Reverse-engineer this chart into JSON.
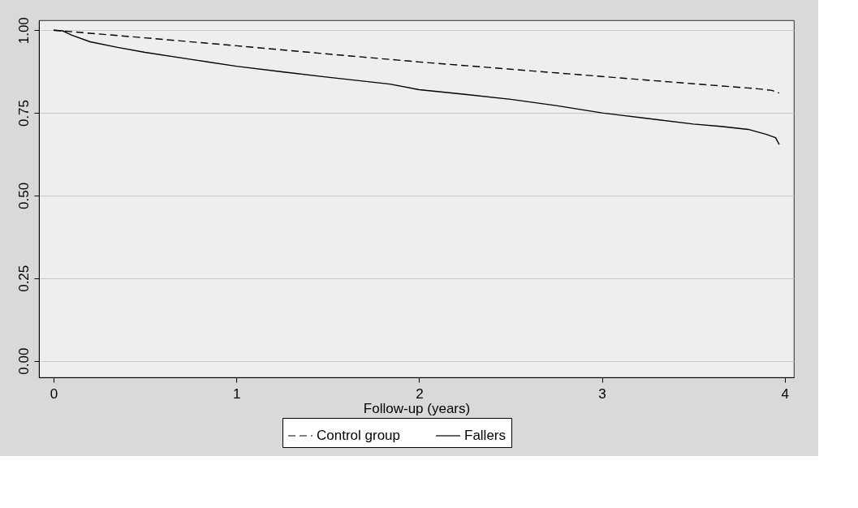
{
  "chart_data": {
    "type": "line",
    "xlabel": "Follow-up (years)",
    "xlim": [
      -0.08,
      4.05
    ],
    "ylim": [
      -0.05,
      1.03
    ],
    "xticks": [
      0,
      1,
      2,
      3,
      4
    ],
    "yticks": [
      {
        "value": 0,
        "label": "0.00"
      },
      {
        "value": 0.25,
        "label": "0.25"
      },
      {
        "value": 0.5,
        "label": "0.50"
      },
      {
        "value": 0.75,
        "label": "0.75"
      },
      {
        "value": 1,
        "label": "1.00"
      }
    ],
    "grid": "y",
    "legend": "bottom",
    "marker": "none",
    "series": [
      {
        "name": "Control group",
        "color": "#000000",
        "line_style": "dashed",
        "x": [
          0,
          0.5,
          1,
          1.5,
          2,
          2.5,
          3,
          3.5,
          3.85,
          3.93,
          3.97
        ],
        "values": [
          1.0,
          0.977,
          0.953,
          0.928,
          0.904,
          0.882,
          0.86,
          0.838,
          0.823,
          0.818,
          0.81
        ]
      },
      {
        "name": "Fallers",
        "color": "#000000",
        "line_style": "solid",
        "x": [
          0,
          0.05,
          0.1,
          0.2,
          0.35,
          0.5,
          0.75,
          1,
          1.25,
          1.5,
          1.84,
          2,
          2.25,
          2.5,
          2.75,
          3,
          3.25,
          3.5,
          3.65,
          3.8,
          3.9,
          3.95,
          3.97
        ],
        "values": [
          1.0,
          0.998,
          0.985,
          0.965,
          0.948,
          0.933,
          0.912,
          0.891,
          0.874,
          0.858,
          0.837,
          0.82,
          0.806,
          0.791,
          0.772,
          0.75,
          0.733,
          0.716,
          0.709,
          0.7,
          0.685,
          0.675,
          0.654
        ]
      }
    ]
  }
}
